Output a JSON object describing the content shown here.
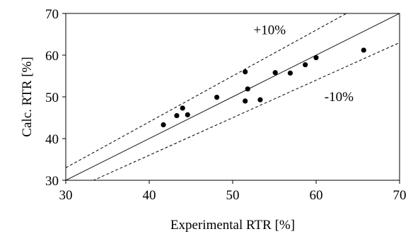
{
  "chart_data": {
    "type": "scatter",
    "xlabel": "Experimental RTR [%]",
    "ylabel": "Calc. RTR [%]",
    "xlim": [
      30,
      70
    ],
    "ylim": [
      30,
      70
    ],
    "x_ticks": [
      30,
      40,
      50,
      60,
      70
    ],
    "y_ticks": [
      30,
      40,
      50,
      60,
      70
    ],
    "grid": false,
    "points": [
      {
        "x": 41.7,
        "y": 43.3
      },
      {
        "x": 43.3,
        "y": 45.5
      },
      {
        "x": 44.0,
        "y": 47.3
      },
      {
        "x": 44.6,
        "y": 45.7
      },
      {
        "x": 48.1,
        "y": 49.9
      },
      {
        "x": 51.5,
        "y": 56.0
      },
      {
        "x": 51.5,
        "y": 49.0
      },
      {
        "x": 51.8,
        "y": 51.9
      },
      {
        "x": 53.3,
        "y": 49.3
      },
      {
        "x": 55.1,
        "y": 55.8
      },
      {
        "x": 56.9,
        "y": 55.7
      },
      {
        "x": 58.7,
        "y": 57.7
      },
      {
        "x": 60.0,
        "y": 59.4
      },
      {
        "x": 65.7,
        "y": 61.2
      }
    ],
    "reference_lines": [
      {
        "kind": "identity",
        "slope": 1.0,
        "style": "solid"
      },
      {
        "kind": "upper",
        "slope": 1.1,
        "style": "dashed"
      },
      {
        "kind": "lower",
        "slope": 0.9,
        "style": "dashed"
      }
    ],
    "annotations": [
      {
        "text": "+10%",
        "x": 52.5,
        "y": 65.0
      },
      {
        "text": "-10%",
        "x": 61.0,
        "y": 49.0
      }
    ],
    "colors": {
      "points": "#000000",
      "lines": "#000000",
      "axes": "#000000"
    }
  }
}
